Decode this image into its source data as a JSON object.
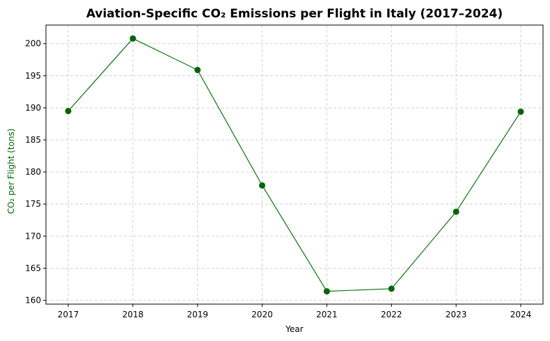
{
  "chart_data": {
    "type": "line",
    "title": "Aviation-Specific CO₂ Emissions per Flight in Italy (2017–2024)",
    "xlabel": "Year",
    "ylabel": "CO₂ per Flight (tons)",
    "x": [
      "2017",
      "2018",
      "2019",
      "2020",
      "2021",
      "2022",
      "2023",
      "2024"
    ],
    "series": [
      {
        "values": [
          189.5,
          200.8,
          195.9,
          177.9,
          161.4,
          161.8,
          173.8,
          189.4
        ]
      }
    ],
    "yticks": [
      "160",
      "165",
      "170",
      "175",
      "180",
      "185",
      "190",
      "195",
      "200"
    ],
    "ylim": [
      159.4,
      202.9
    ],
    "grid": true,
    "color": "#006400",
    "ylabel_color": "#006400"
  }
}
